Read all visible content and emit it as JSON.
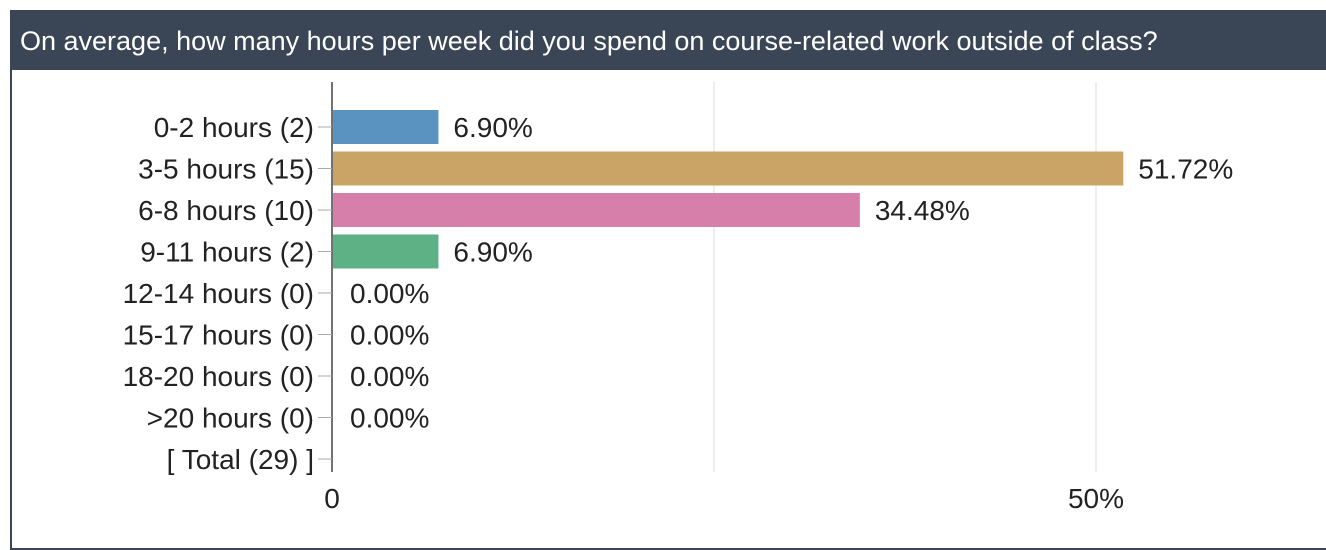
{
  "title": "On average, how many hours per week did you spend on course-related work outside of class?",
  "chart_data": {
    "type": "bar",
    "orientation": "horizontal",
    "title": "On average, how many hours per week did you spend on course-related work outside of class?",
    "categories": [
      "0-2 hours (2)",
      "3-5 hours (15)",
      "6-8 hours (10)",
      "9-11 hours (2)",
      "12-14 hours (0)",
      "15-17 hours (0)",
      "18-20 hours (0)",
      ">20 hours (0)",
      "[ Total (29) ]"
    ],
    "values": [
      6.9,
      51.72,
      34.48,
      6.9,
      0.0,
      0.0,
      0.0,
      0.0,
      null
    ],
    "value_labels": [
      "6.90%",
      "51.72%",
      "34.48%",
      "6.90%",
      "0.00%",
      "0.00%",
      "0.00%",
      "0.00%",
      ""
    ],
    "colors": [
      "#5b93c0",
      "#c9a466",
      "#d67fab",
      "#5db185",
      "",
      "",
      "",
      "",
      ""
    ],
    "xlim": [
      0,
      75
    ],
    "x_ticks": [
      0,
      25,
      50,
      75
    ],
    "x_tick_labels": [
      "0",
      "",
      "50%",
      ""
    ],
    "grid": true,
    "xlabel": "",
    "ylabel": ""
  }
}
